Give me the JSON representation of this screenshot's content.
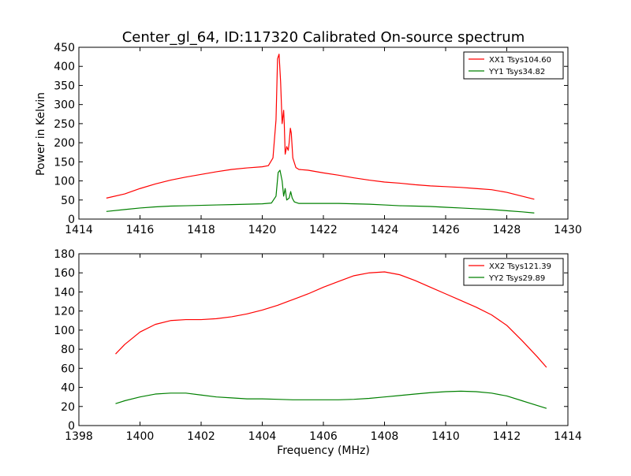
{
  "figure": {
    "title": "Center_gl_64, ID:117320 Calibrated On-source spectrum",
    "ylabel": "Power in Kelvin",
    "xlabel": "Frequency (MHz)"
  },
  "chart_data": [
    {
      "type": "line",
      "title": "Center_gl_64, ID:117320 Calibrated On-source spectrum",
      "xlabel": "",
      "ylabel": "Power in Kelvin",
      "xlim": [
        1414,
        1430
      ],
      "ylim": [
        0,
        450
      ],
      "xticks": [
        1414,
        1416,
        1418,
        1420,
        1422,
        1424,
        1426,
        1428,
        1430
      ],
      "yticks": [
        0,
        50,
        100,
        150,
        200,
        250,
        300,
        350,
        400,
        450
      ],
      "grid": false,
      "legend_position": "top-right",
      "series": [
        {
          "name": "XX1 Tsys104.60",
          "color": "#ff0000",
          "x": [
            1414.9,
            1415.5,
            1416,
            1416.5,
            1417,
            1417.5,
            1418,
            1418.5,
            1419,
            1419.5,
            1420,
            1420.2,
            1420.35,
            1420.45,
            1420.5,
            1420.55,
            1420.6,
            1420.65,
            1420.7,
            1420.72,
            1420.75,
            1420.8,
            1420.85,
            1420.88,
            1420.92,
            1420.95,
            1421,
            1421.1,
            1421.2,
            1421.5,
            1422,
            1422.5,
            1423,
            1423.5,
            1424,
            1424.5,
            1425,
            1425.5,
            1426,
            1426.5,
            1427,
            1427.5,
            1428,
            1428.5,
            1428.9
          ],
          "values": [
            55,
            66,
            80,
            92,
            102,
            110,
            117,
            124,
            130,
            134,
            137,
            140,
            160,
            260,
            420,
            432,
            360,
            250,
            285,
            250,
            170,
            190,
            180,
            200,
            238,
            225,
            160,
            135,
            130,
            128,
            121,
            115,
            108,
            102,
            97,
            94,
            90,
            87,
            85,
            83,
            80,
            77,
            70,
            60,
            52
          ]
        },
        {
          "name": "YY1 Tsys34.82",
          "color": "#008000",
          "x": [
            1414.9,
            1415.5,
            1416,
            1416.5,
            1417,
            1417.5,
            1418,
            1418.5,
            1419,
            1419.5,
            1420,
            1420.3,
            1420.45,
            1420.52,
            1420.58,
            1420.65,
            1420.7,
            1420.75,
            1420.8,
            1420.88,
            1420.93,
            1420.98,
            1421.05,
            1421.2,
            1421.5,
            1422,
            1422.5,
            1423,
            1423.5,
            1424,
            1424.5,
            1425,
            1425.5,
            1426,
            1426.5,
            1427,
            1427.5,
            1428,
            1428.5,
            1428.9
          ],
          "values": [
            20,
            25,
            29,
            32,
            34,
            35,
            36,
            37,
            38,
            39,
            40,
            42,
            60,
            122,
            128,
            100,
            60,
            80,
            50,
            55,
            72,
            55,
            45,
            41,
            41,
            41,
            41,
            40,
            39,
            37,
            35,
            34,
            33,
            31,
            29,
            27,
            25,
            22,
            19,
            16
          ]
        }
      ]
    },
    {
      "type": "line",
      "title": "",
      "xlabel": "Frequency (MHz)",
      "ylabel": "",
      "xlim": [
        1398,
        1414
      ],
      "ylim": [
        0,
        180
      ],
      "xticks": [
        1398,
        1400,
        1402,
        1404,
        1406,
        1408,
        1410,
        1412,
        1414
      ],
      "yticks": [
        0,
        20,
        40,
        60,
        80,
        100,
        120,
        140,
        160,
        180
      ],
      "grid": false,
      "legend_position": "top-right",
      "series": [
        {
          "name": "XX2 Tsys121.39",
          "color": "#ff0000",
          "x": [
            1399.2,
            1399.5,
            1400,
            1400.5,
            1401,
            1401.5,
            1402,
            1402.5,
            1403,
            1403.5,
            1404,
            1404.5,
            1405,
            1405.5,
            1406,
            1406.5,
            1407,
            1407.5,
            1408,
            1408.5,
            1409,
            1409.5,
            1410,
            1410.5,
            1411,
            1411.5,
            1412,
            1412.5,
            1413,
            1413.3
          ],
          "values": [
            75,
            85,
            98,
            106,
            110,
            111,
            111,
            112,
            114,
            117,
            121,
            126,
            132,
            138,
            145,
            151,
            157,
            160,
            161,
            158,
            152,
            145,
            138,
            131,
            124,
            116,
            105,
            89,
            72,
            61
          ]
        },
        {
          "name": "YY2 Tsys29.89",
          "color": "#008000",
          "x": [
            1399.2,
            1399.5,
            1400,
            1400.5,
            1401,
            1401.5,
            1402,
            1402.5,
            1403,
            1403.5,
            1404,
            1404.5,
            1405,
            1405.5,
            1406,
            1406.5,
            1407,
            1407.5,
            1408,
            1408.5,
            1409,
            1409.5,
            1410,
            1410.5,
            1411,
            1411.5,
            1412,
            1412.5,
            1413,
            1413.3
          ],
          "values": [
            23,
            26,
            30,
            33,
            34,
            34,
            32,
            30,
            29,
            28,
            28,
            27.5,
            27,
            27,
            27,
            27,
            27.5,
            28.5,
            30,
            31.5,
            33,
            34.5,
            35.5,
            36,
            35.5,
            34,
            31,
            26,
            21,
            18
          ]
        }
      ]
    }
  ]
}
